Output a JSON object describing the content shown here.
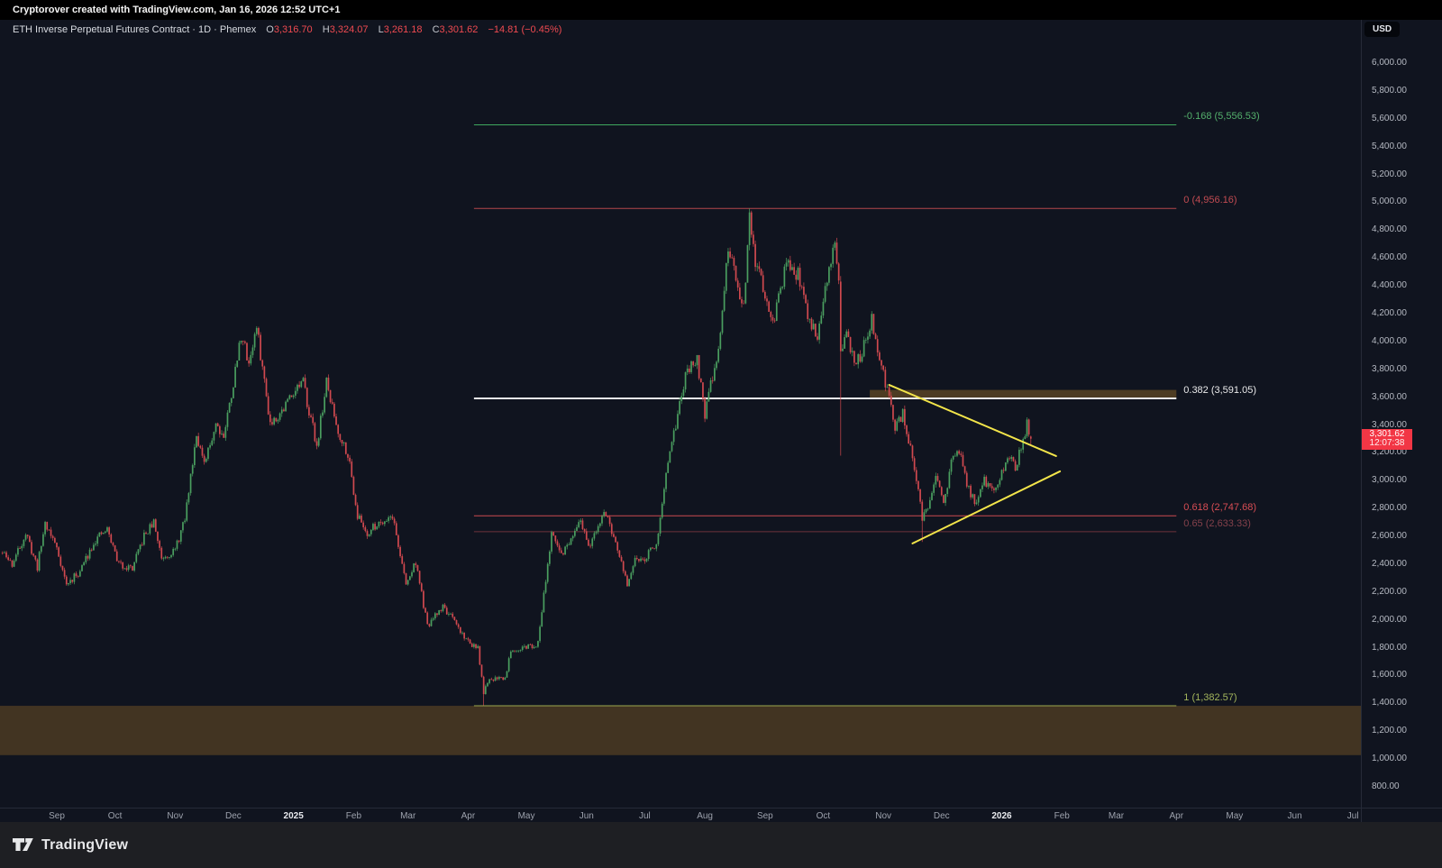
{
  "header": {
    "watermark": "Cryptorover created with TradingView.com, Jan 16, 2026 12:52 UTC+1"
  },
  "symbol_bar": {
    "title": "ETH Inverse Perpetual Futures Contract · 1D · Phemex",
    "ohlc": [
      {
        "label": "O",
        "value": "3,316.70"
      },
      {
        "label": "H",
        "value": "3,324.07"
      },
      {
        "label": "L",
        "value": "3,261.18"
      },
      {
        "label": "C",
        "value": "3,301.62"
      }
    ],
    "change": "−14.81 (−0.45%)"
  },
  "price_axis": {
    "currency": "USD",
    "last_price": "3,301.62",
    "countdown": "12:07:38",
    "tick_labels": [
      "6,000.00",
      "5,800.00",
      "5,600.00",
      "5,400.00",
      "5,200.00",
      "5,000.00",
      "4,800.00",
      "4,600.00",
      "4,400.00",
      "4,200.00",
      "4,000.00",
      "3,800.00",
      "3,600.00",
      "3,400.00",
      "3,200.00",
      "3,000.00",
      "2,800.00",
      "2,600.00",
      "2,400.00",
      "2,200.00",
      "2,000.00",
      "1,800.00",
      "1,600.00",
      "1,400.00",
      "1,200.00",
      "1,000.00",
      "800.00"
    ],
    "tick_values": [
      6000,
      5800,
      5600,
      5400,
      5200,
      5000,
      4800,
      4600,
      4400,
      4200,
      4000,
      3800,
      3600,
      3400,
      3200,
      3000,
      2800,
      2600,
      2400,
      2200,
      2000,
      1800,
      1600,
      1400,
      1200,
      1000,
      800
    ]
  },
  "time_axis": {
    "labels": [
      {
        "text": "Sep",
        "date": "2024-09-01",
        "bold": false
      },
      {
        "text": "Oct",
        "date": "2024-10-01",
        "bold": false
      },
      {
        "text": "Nov",
        "date": "2024-11-01",
        "bold": false
      },
      {
        "text": "Dec",
        "date": "2024-12-01",
        "bold": false
      },
      {
        "text": "2025",
        "date": "2025-01-01",
        "bold": true
      },
      {
        "text": "Feb",
        "date": "2025-02-01",
        "bold": false
      },
      {
        "text": "Mar",
        "date": "2025-03-01",
        "bold": false
      },
      {
        "text": "Apr",
        "date": "2025-04-01",
        "bold": false
      },
      {
        "text": "May",
        "date": "2025-05-01",
        "bold": false
      },
      {
        "text": "Jun",
        "date": "2025-06-01",
        "bold": false
      },
      {
        "text": "Jul",
        "date": "2025-07-01",
        "bold": false
      },
      {
        "text": "Aug",
        "date": "2025-08-01",
        "bold": false
      },
      {
        "text": "Sep",
        "date": "2025-09-01",
        "bold": false
      },
      {
        "text": "Oct",
        "date": "2025-10-01",
        "bold": false
      },
      {
        "text": "Nov",
        "date": "2025-11-01",
        "bold": false
      },
      {
        "text": "Dec",
        "date": "2025-12-01",
        "bold": false
      },
      {
        "text": "2026",
        "date": "2026-01-01",
        "bold": true
      },
      {
        "text": "Feb",
        "date": "2026-02-01",
        "bold": false
      },
      {
        "text": "Mar",
        "date": "2026-03-01",
        "bold": false
      },
      {
        "text": "Apr",
        "date": "2026-04-01",
        "bold": false
      },
      {
        "text": "May",
        "date": "2026-05-01",
        "bold": false
      },
      {
        "text": "Jun",
        "date": "2026-06-01",
        "bold": false
      },
      {
        "text": "Jul",
        "date": "2026-07-01",
        "bold": false
      }
    ]
  },
  "footer": {
    "brand": "TradingView"
  },
  "colors": {
    "background": "#10141f",
    "candle_up": "#4a9e5f",
    "candle_down": "#d0494f",
    "trendline_yellow": "#f3e54a",
    "badge_red": "#f23645",
    "zone_brown": "#805c26"
  },
  "chart_data": {
    "type": "candlestick",
    "title": "ETH Inverse Perpetual Futures Contract",
    "interval": "1D",
    "exchange": "Phemex",
    "price_scale": {
      "min": 800,
      "max": 6000,
      "step": 200
    },
    "time_scale": {
      "first_visible": "2024-08-04",
      "last_candle": "2026-01-16",
      "last_label": "2026-07-01"
    },
    "last_candle_ohlc": {
      "open": 3316.7,
      "high": 3324.07,
      "low": 3261.18,
      "close": 3301.62,
      "change": -14.81,
      "change_percent": -0.45
    },
    "price_path_anchors": [
      [
        "2024-08-04",
        2480
      ],
      [
        "2024-08-09",
        2400
      ],
      [
        "2024-08-16",
        2620
      ],
      [
        "2024-08-22",
        2380
      ],
      [
        "2024-08-26",
        2700
      ],
      [
        "2024-09-01",
        2520
      ],
      [
        "2024-09-06",
        2250
      ],
      [
        "2024-09-13",
        2350
      ],
      [
        "2024-09-20",
        2560
      ],
      [
        "2024-09-27",
        2650
      ],
      [
        "2024-10-03",
        2400
      ],
      [
        "2024-10-10",
        2370
      ],
      [
        "2024-10-16",
        2600
      ],
      [
        "2024-10-21",
        2700
      ],
      [
        "2024-10-25",
        2450
      ],
      [
        "2024-11-01",
        2500
      ],
      [
        "2024-11-06",
        2720
      ],
      [
        "2024-11-12",
        3350
      ],
      [
        "2024-11-16",
        3100
      ],
      [
        "2024-11-22",
        3420
      ],
      [
        "2024-11-26",
        3320
      ],
      [
        "2024-12-01",
        3700
      ],
      [
        "2024-12-05",
        4050
      ],
      [
        "2024-12-09",
        3850
      ],
      [
        "2024-12-13",
        4100
      ],
      [
        "2024-12-20",
        3420
      ],
      [
        "2024-12-26",
        3500
      ],
      [
        "2025-01-01",
        3650
      ],
      [
        "2025-01-06",
        3700
      ],
      [
        "2025-01-13",
        3250
      ],
      [
        "2025-01-18",
        3700
      ],
      [
        "2025-01-24",
        3350
      ],
      [
        "2025-01-29",
        3200
      ],
      [
        "2025-02-03",
        2750
      ],
      [
        "2025-02-08",
        2620
      ],
      [
        "2025-02-14",
        2700
      ],
      [
        "2025-02-21",
        2750
      ],
      [
        "2025-02-28",
        2250
      ],
      [
        "2025-03-05",
        2420
      ],
      [
        "2025-03-11",
        1950
      ],
      [
        "2025-03-19",
        2100
      ],
      [
        "2025-03-24",
        2000
      ],
      [
        "2025-03-31",
        1860
      ],
      [
        "2025-04-06",
        1790
      ],
      [
        "2025-04-09",
        1480
      ],
      [
        "2025-04-12",
        1560
      ],
      [
        "2025-04-16",
        1590
      ],
      [
        "2025-04-20",
        1580
      ],
      [
        "2025-04-23",
        1790
      ],
      [
        "2025-04-30",
        1800
      ],
      [
        "2025-05-07",
        1830
      ],
      [
        "2025-05-10",
        2200
      ],
      [
        "2025-05-14",
        2600
      ],
      [
        "2025-05-19",
        2480
      ],
      [
        "2025-05-24",
        2560
      ],
      [
        "2025-05-29",
        2700
      ],
      [
        "2025-06-03",
        2520
      ],
      [
        "2025-06-10",
        2790
      ],
      [
        "2025-06-16",
        2550
      ],
      [
        "2025-06-22",
        2250
      ],
      [
        "2025-06-26",
        2420
      ],
      [
        "2025-07-01",
        2450
      ],
      [
        "2025-07-07",
        2550
      ],
      [
        "2025-07-11",
        2950
      ],
      [
        "2025-07-17",
        3400
      ],
      [
        "2025-07-22",
        3750
      ],
      [
        "2025-07-28",
        3880
      ],
      [
        "2025-08-01",
        3480
      ],
      [
        "2025-08-08",
        3950
      ],
      [
        "2025-08-13",
        4650
      ],
      [
        "2025-08-17",
        4450
      ],
      [
        "2025-08-21",
        4250
      ],
      [
        "2025-08-24",
        4870
      ],
      [
        "2025-08-27",
        4550
      ],
      [
        "2025-08-31",
        4400
      ],
      [
        "2025-09-05",
        4120
      ],
      [
        "2025-09-12",
        4550
      ],
      [
        "2025-09-18",
        4480
      ],
      [
        "2025-09-24",
        4150
      ],
      [
        "2025-09-28",
        4050
      ],
      [
        "2025-10-01",
        4280
      ],
      [
        "2025-10-07",
        4750
      ],
      [
        "2025-10-09",
        4400
      ],
      [
        "2025-10-10",
        3950
      ],
      [
        "2025-10-13",
        4050
      ],
      [
        "2025-10-17",
        3830
      ],
      [
        "2025-10-21",
        3920
      ],
      [
        "2025-10-26",
        4150
      ],
      [
        "2025-10-30",
        3880
      ],
      [
        "2025-11-03",
        3650
      ],
      [
        "2025-11-07",
        3380
      ],
      [
        "2025-11-11",
        3480
      ],
      [
        "2025-11-16",
        3150
      ],
      [
        "2025-11-21",
        2740
      ],
      [
        "2025-11-24",
        2830
      ],
      [
        "2025-11-28",
        3020
      ],
      [
        "2025-12-02",
        2820
      ],
      [
        "2025-12-06",
        3120
      ],
      [
        "2025-12-10",
        3220
      ],
      [
        "2025-12-14",
        2980
      ],
      [
        "2025-12-18",
        2840
      ],
      [
        "2025-12-23",
        3000
      ],
      [
        "2025-12-28",
        2920
      ],
      [
        "2026-01-01",
        3060
      ],
      [
        "2026-01-05",
        3180
      ],
      [
        "2026-01-08",
        3100
      ],
      [
        "2026-01-11",
        3230
      ],
      [
        "2026-01-14",
        3420
      ],
      [
        "2026-01-15",
        3350
      ],
      [
        "2026-01-16",
        3301.62
      ]
    ],
    "special_candles": {
      "2025-04-09": {
        "low": 1385
      },
      "2025-08-24": {
        "high": 4956.16
      },
      "2025-10-10": {
        "open": 4430,
        "high": 4470,
        "low": 3180,
        "close": 3930
      },
      "2025-11-21": {
        "low": 2560
      },
      "2026-01-16": {
        "open": 3316.7,
        "high": 3324.07,
        "low": 3261.18,
        "close": 3301.62
      }
    },
    "fib_retracement": {
      "range_start": "2025-04-04",
      "range_end": "2026-04-01",
      "levels": [
        {
          "level": -0.168,
          "price": 5556.53,
          "label": "-0.168 (5,556.53)",
          "line_color": "#3fa85e",
          "label_color": "#54b06c",
          "width": 1
        },
        {
          "level": 0,
          "price": 4956.16,
          "label": "0 (4,956.16)",
          "line_color": "#b4464c",
          "label_color": "#c14b52",
          "width": 1
        },
        {
          "level": 0.382,
          "price": 3591.05,
          "label": "0.382 (3,591.05)",
          "line_color": "#e9e9ea",
          "label_color": "#e9e9ea",
          "width": 2
        },
        {
          "level": 0.618,
          "price": 2747.68,
          "label": "0.618 (2,747.68)",
          "line_color": "#cc4950",
          "label_color": "#d84d54",
          "width": 1
        },
        {
          "level": 0.65,
          "price": 2633.33,
          "label": "0.65 (2,633.33)",
          "line_color": "#6e323b",
          "label_color": "#84414b",
          "width": 1
        },
        {
          "level": 1,
          "price": 1382.57,
          "label": "1 (1,382.57)",
          "line_color": "#9aa84f",
          "label_color": "#a3b55c",
          "width": 1
        }
      ]
    },
    "zones": [
      {
        "name": "resistance-box",
        "date_start": "2025-10-25",
        "date_end": "2026-04-01",
        "price_top": 3652,
        "price_bottom": 3591,
        "fill": "rgba(128,92,38,0.55)",
        "full_width": false
      },
      {
        "name": "target-zone",
        "date_start": null,
        "date_end": null,
        "price_top": 1382.57,
        "price_bottom": 1028,
        "fill": "rgba(128,92,38,0.45)",
        "full_width": true
      }
    ],
    "trendlines": [
      {
        "name": "triangle-upper",
        "start_date": "2025-11-04",
        "start_price": 3688,
        "end_date": "2026-01-29",
        "end_price": 3177,
        "color": "#f3e54a"
      },
      {
        "name": "triangle-lower",
        "start_date": "2025-11-16",
        "start_price": 2549,
        "end_date": "2026-01-31",
        "end_price": 3067,
        "color": "#f3e54a"
      }
    ]
  }
}
